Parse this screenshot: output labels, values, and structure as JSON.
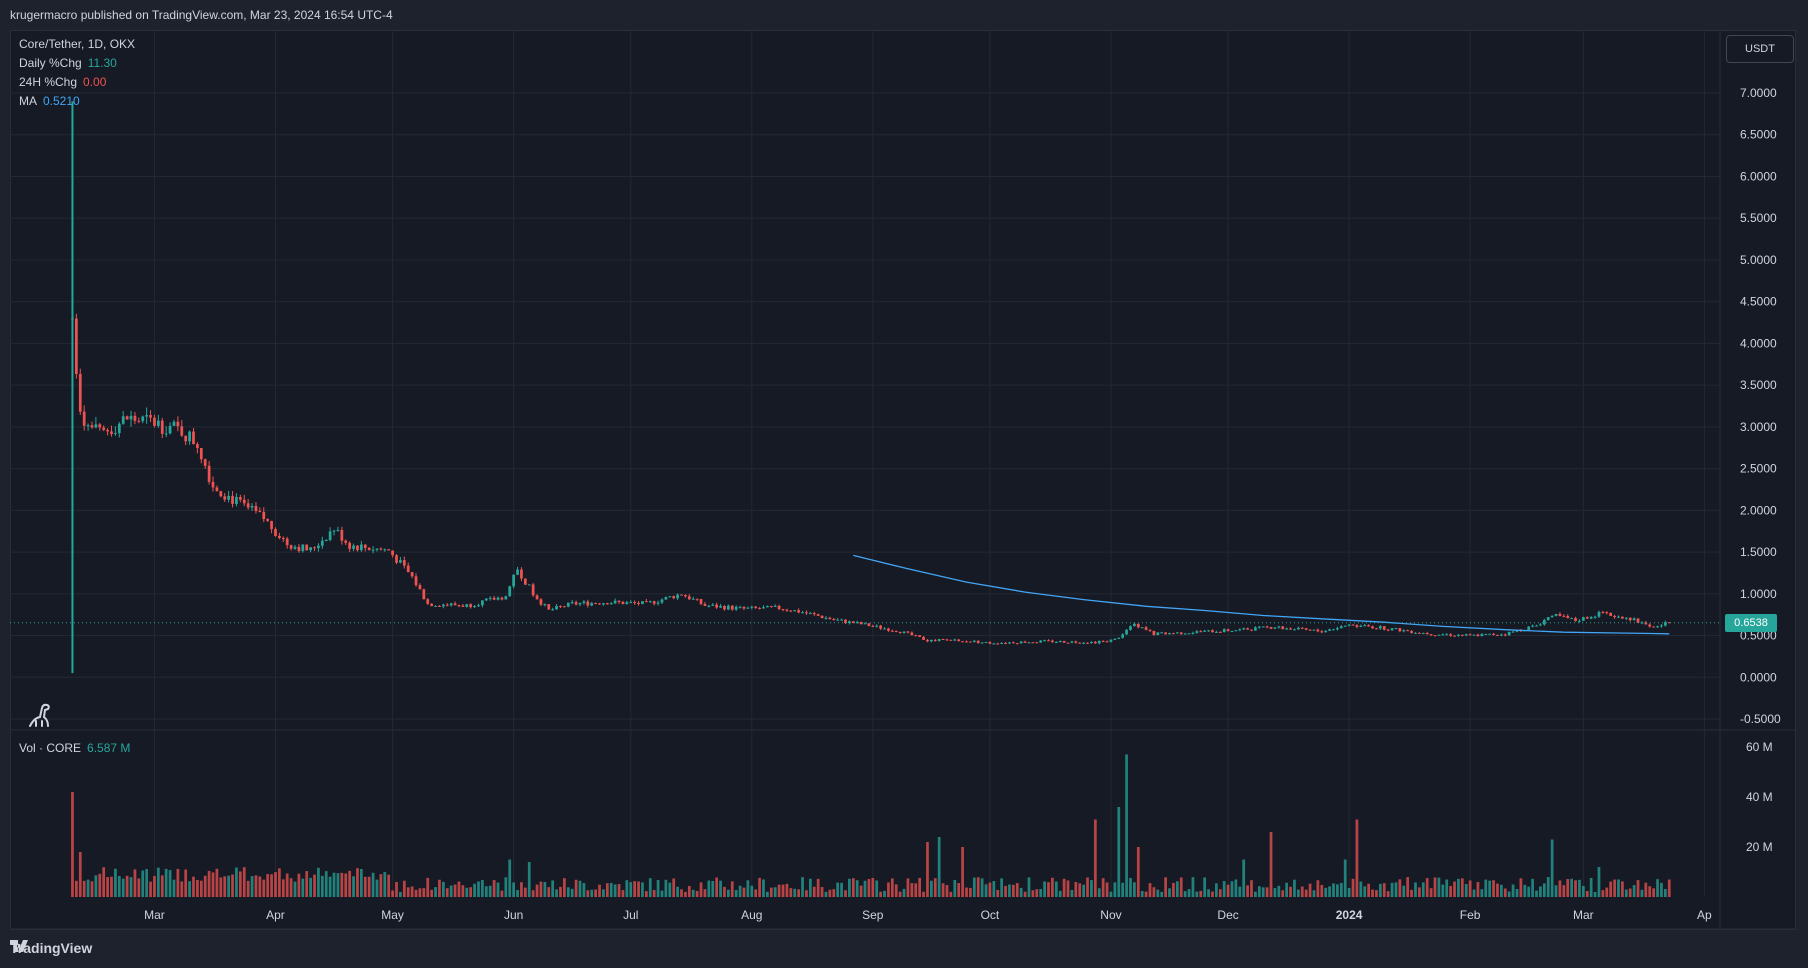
{
  "header": {
    "published": "krugermacro published on TradingView.com, Mar 23, 2024 16:54 UTC-4"
  },
  "legend": {
    "symbol": "Core/Tether, 1D, OKX",
    "daily_label": "Daily %Chg",
    "daily_value": "11.30",
    "h24_label": "24H %Chg",
    "h24_value": "0.00",
    "ma_label": "MA",
    "ma_value": "0.5210"
  },
  "volume_legend": {
    "label": "Vol · CORE",
    "value": "6.587 M"
  },
  "currency_button": "USDT",
  "last_price": "0.6538",
  "footer": {
    "brand": "TradingView",
    "icon": "tradingview-logo-icon"
  },
  "colors": {
    "up": "#26a69a",
    "down": "#ef5350",
    "ma": "#42a5f5",
    "background": "#161a25",
    "grid": "#242833"
  },
  "chart_data": [
    {
      "type": "candlestick",
      "title": "Core/Tether, 1D, OKX",
      "ylabel": "USDT",
      "ylim": [
        -0.5,
        7.0
      ],
      "price_ticks": [
        "7.0000",
        "6.5000",
        "6.0000",
        "5.5000",
        "5.0000",
        "4.5000",
        "4.0000",
        "3.5000",
        "3.0000",
        "2.5000",
        "2.0000",
        "1.5000",
        "1.0000",
        "0.5000",
        "0.0000",
        "-0.5000"
      ],
      "price_tick_values": [
        7.0,
        6.5,
        6.0,
        5.5,
        5.0,
        4.5,
        4.0,
        3.5,
        3.0,
        2.5,
        2.0,
        1.5,
        1.0,
        0.5,
        0.0,
        -0.5
      ],
      "x_ticks": [
        "Mar",
        "Apr",
        "May",
        "Jun",
        "Jul",
        "Aug",
        "Sep",
        "Oct",
        "Nov",
        "Dec",
        "2024",
        "Feb",
        "Mar",
        "Ap"
      ],
      "x_tick_dates": [
        "2023-03-01",
        "2023-04-01",
        "2023-05-01",
        "2023-06-01",
        "2023-07-01",
        "2023-08-01",
        "2023-09-01",
        "2023-10-01",
        "2023-11-01",
        "2023-12-01",
        "2024-01-01",
        "2024-02-01",
        "2024-03-01",
        "2024-04-01"
      ],
      "x_range": [
        "2023-01-23",
        "2024-04-05"
      ],
      "price_path": [
        [
          "2023-02-08",
          4.3
        ],
        [
          "2023-02-10",
          3.1
        ],
        [
          "2023-02-15",
          2.9
        ],
        [
          "2023-02-22",
          3.1
        ],
        [
          "2023-03-01",
          3.05
        ],
        [
          "2023-03-08",
          2.95
        ],
        [
          "2023-03-12",
          2.8
        ],
        [
          "2023-03-16",
          2.3
        ],
        [
          "2023-03-22",
          2.1
        ],
        [
          "2023-03-29",
          1.9
        ],
        [
          "2023-04-04",
          1.6
        ],
        [
          "2023-04-10",
          1.52
        ],
        [
          "2023-04-16",
          1.78
        ],
        [
          "2023-04-20",
          1.58
        ],
        [
          "2023-04-30",
          1.52
        ],
        [
          "2023-05-06",
          1.2
        ],
        [
          "2023-05-10",
          0.88
        ],
        [
          "2023-05-20",
          0.86
        ],
        [
          "2023-05-30",
          0.97
        ],
        [
          "2023-06-02",
          1.3
        ],
        [
          "2023-06-06",
          1.0
        ],
        [
          "2023-06-10",
          0.8
        ],
        [
          "2023-06-16",
          0.88
        ],
        [
          "2023-06-25",
          0.9
        ],
        [
          "2023-07-05",
          0.88
        ],
        [
          "2023-07-14",
          1.0
        ],
        [
          "2023-07-20",
          0.86
        ],
        [
          "2023-07-30",
          0.82
        ],
        [
          "2023-08-08",
          0.83
        ],
        [
          "2023-08-14",
          0.78
        ],
        [
          "2023-08-22",
          0.69
        ],
        [
          "2023-08-30",
          0.63
        ],
        [
          "2023-09-08",
          0.55
        ],
        [
          "2023-09-15",
          0.44
        ],
        [
          "2023-09-22",
          0.45
        ],
        [
          "2023-10-01",
          0.41
        ],
        [
          "2023-10-15",
          0.43
        ],
        [
          "2023-10-28",
          0.42
        ],
        [
          "2023-11-02",
          0.45
        ],
        [
          "2023-11-07",
          0.63
        ],
        [
          "2023-11-12",
          0.52
        ],
        [
          "2023-11-22",
          0.54
        ],
        [
          "2023-12-05",
          0.57
        ],
        [
          "2023-12-12",
          0.6
        ],
        [
          "2023-12-25",
          0.55
        ],
        [
          "2024-01-01",
          0.63
        ],
        [
          "2024-01-10",
          0.59
        ],
        [
          "2024-01-22",
          0.52
        ],
        [
          "2024-02-01",
          0.5
        ],
        [
          "2024-02-10",
          0.52
        ],
        [
          "2024-02-18",
          0.62
        ],
        [
          "2024-02-22",
          0.75
        ],
        [
          "2024-02-28",
          0.68
        ],
        [
          "2024-03-05",
          0.76
        ],
        [
          "2024-03-12",
          0.72
        ],
        [
          "2024-03-19",
          0.6
        ],
        [
          "2024-03-23",
          0.6538
        ]
      ],
      "spike": {
        "date": "2023-02-08",
        "high": 6.9,
        "low": 0.05
      },
      "ma_series": [
        [
          "2023-08-27",
          1.46
        ],
        [
          "2023-09-10",
          1.3
        ],
        [
          "2023-09-25",
          1.14
        ],
        [
          "2023-10-10",
          1.02
        ],
        [
          "2023-10-25",
          0.93
        ],
        [
          "2023-11-10",
          0.85
        ],
        [
          "2023-11-25",
          0.8
        ],
        [
          "2023-12-10",
          0.74
        ],
        [
          "2023-12-25",
          0.7
        ],
        [
          "2024-01-10",
          0.66
        ],
        [
          "2024-01-25",
          0.61
        ],
        [
          "2024-02-10",
          0.57
        ],
        [
          "2024-02-25",
          0.54
        ],
        [
          "2024-03-10",
          0.53
        ],
        [
          "2024-03-23",
          0.521
        ]
      ]
    },
    {
      "type": "bar",
      "title": "Vol · CORE",
      "ylim": [
        0,
        60
      ],
      "volume_ticks": [
        "60 M",
        "40 M",
        "20 M"
      ],
      "volume_tick_values": [
        60,
        40,
        20
      ],
      "unit": "M",
      "notable_volumes": [
        [
          "2023-02-08",
          42
        ],
        [
          "2023-02-10",
          18
        ],
        [
          "2023-05-31",
          15
        ],
        [
          "2023-06-05",
          14
        ],
        [
          "2023-09-15",
          22
        ],
        [
          "2023-09-18",
          24
        ],
        [
          "2023-09-24",
          20
        ],
        [
          "2023-10-28",
          31
        ],
        [
          "2023-11-03",
          36
        ],
        [
          "2023-11-05",
          57
        ],
        [
          "2023-11-08",
          20
        ],
        [
          "2023-12-05",
          15
        ],
        [
          "2023-12-12",
          26
        ],
        [
          "2023-12-31",
          15
        ],
        [
          "2024-01-03",
          31
        ],
        [
          "2024-02-22",
          23
        ],
        [
          "2024-03-05",
          12
        ]
      ]
    }
  ]
}
